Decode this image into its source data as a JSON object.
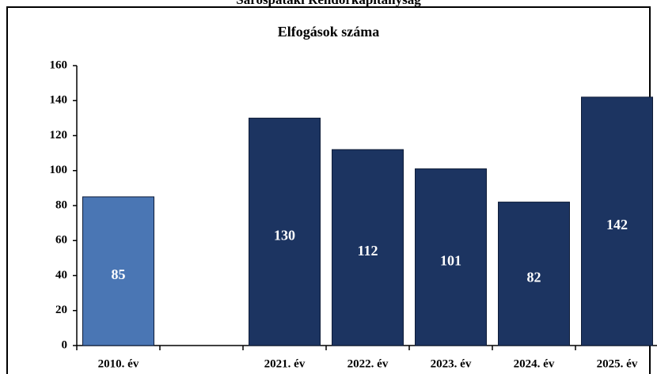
{
  "header": {
    "title": "Sárospataki Rendőrkapitányság"
  },
  "chart_data": {
    "type": "bar",
    "title": "Elfogások száma",
    "categories": [
      "2010. év",
      null,
      "2021. év",
      "2022. év",
      "2023. év",
      "2024. év",
      "2025. év"
    ],
    "values": [
      85,
      null,
      130,
      112,
      101,
      82,
      142
    ],
    "colors": [
      "#4a76b4",
      null,
      "#1c3461",
      "#1c3461",
      "#1c3461",
      "#1c3461",
      "#1c3461"
    ],
    "ylim": [
      0,
      160
    ],
    "yticks": [
      0,
      20,
      40,
      60,
      80,
      100,
      120,
      140,
      160
    ],
    "grid": false
  }
}
